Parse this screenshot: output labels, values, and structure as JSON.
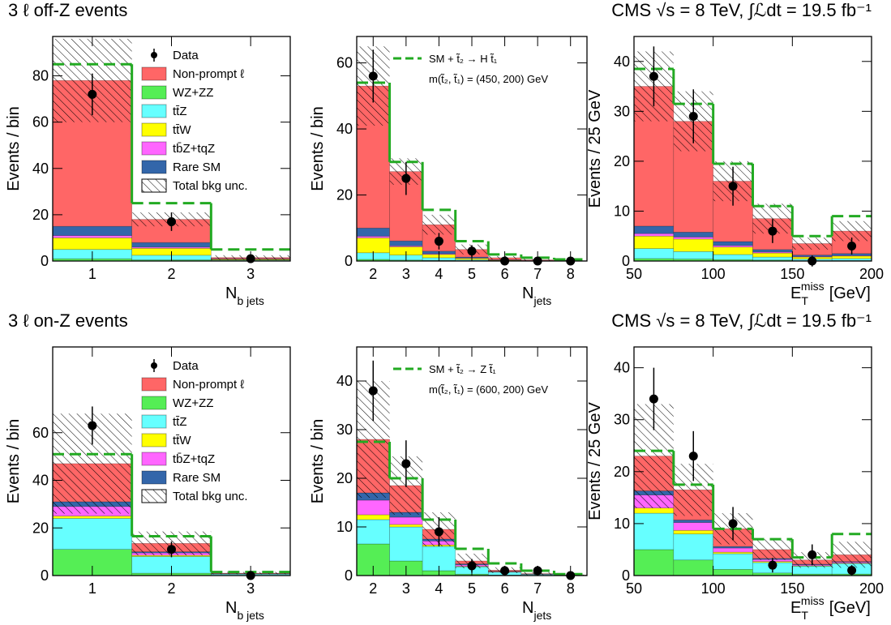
{
  "chart_data": [
    {
      "type": "stacked_histogram",
      "title": "3 ℓ off-Z events",
      "ylabel": "Events / bin",
      "xlabel": {
        "base": "N",
        "sub": "b jets"
      },
      "bins": [
        0.5,
        1.5,
        2.5,
        3.5
      ],
      "xlim": [
        0.5,
        3.5
      ],
      "xticks": [
        1,
        2,
        3
      ],
      "ylim": [
        0,
        97
      ],
      "yticks": [
        0,
        20,
        40,
        60,
        80
      ],
      "series": [
        {
          "name": "Non-prompt ℓ",
          "color": "#ff6666",
          "values": [
            63,
            10,
            0.5
          ]
        },
        {
          "name": "WZ+ZZ",
          "color": "#55ee55",
          "values": [
            1,
            0.5,
            0.1
          ]
        },
        {
          "name": "tt̄Z",
          "color": "#66ffff",
          "values": [
            4,
            2,
            0.3
          ]
        },
        {
          "name": "tt̄W",
          "color": "#ffff00",
          "values": [
            5,
            3,
            0.3
          ]
        },
        {
          "name": "tb̄Z+tqZ",
          "color": "#ff66ff",
          "values": [
            1,
            0.5,
            0.1
          ]
        },
        {
          "name": "Rare SM",
          "color": "#3366aa",
          "values": [
            4,
            2,
            0.2
          ]
        }
      ],
      "uncertainty": {
        "name": "Total bkg unc.",
        "values": [
          18,
          3,
          1
        ]
      },
      "data": {
        "name": "Data",
        "values": [
          72,
          17,
          1
        ],
        "errors": [
          9,
          4,
          1
        ]
      },
      "signal": {
        "color": "#22aa22",
        "values": [
          85,
          25,
          5
        ]
      }
    },
    {
      "type": "stacked_histogram",
      "ylabel": "Events / bin",
      "xlabel": {
        "base": "N",
        "sub": "jets"
      },
      "bins": [
        1.5,
        2.5,
        3.5,
        4.5,
        5.5,
        6.5,
        7.5,
        8.5
      ],
      "xlim": [
        1.5,
        8.5
      ],
      "xticks": [
        2,
        3,
        4,
        5,
        6,
        7,
        8
      ],
      "ylim": [
        0,
        68
      ],
      "yticks": [
        0,
        20,
        40,
        60
      ],
      "series": [
        {
          "color": "#ff6666",
          "values": [
            43,
            21,
            8,
            2.3,
            0.6,
            0.2,
            0.08
          ]
        },
        {
          "color": "#55ee55",
          "values": [
            0.5,
            0.3,
            0.2,
            0.1,
            0.05,
            0,
            0
          ]
        },
        {
          "color": "#66ffff",
          "values": [
            2,
            1.5,
            0.8,
            0.3,
            0.1,
            0.05,
            0
          ]
        },
        {
          "color": "#ffff00",
          "values": [
            4.5,
            2.5,
            1,
            0.4,
            0.1,
            0.05,
            0
          ]
        },
        {
          "color": "#ff66ff",
          "values": [
            0.5,
            0.3,
            0.2,
            0.1,
            0.05,
            0,
            0
          ]
        },
        {
          "color": "#3366aa",
          "values": [
            2.5,
            1.5,
            0.8,
            0.3,
            0.1,
            0.05,
            0.02
          ]
        }
      ],
      "uncertainty": {
        "values": [
          12,
          4,
          3,
          1.5,
          0.5,
          0.3,
          0.2
        ]
      },
      "data": {
        "values": [
          56,
          25,
          6,
          3,
          0,
          0,
          0
        ],
        "errors": [
          8,
          5,
          2.5,
          1.8,
          0,
          0,
          0
        ]
      },
      "signal": {
        "name": "SM + t̃₂ → H t̃₁",
        "color": "#22aa22",
        "values": [
          54,
          30,
          15.5,
          6,
          2,
          1,
          0.5
        ]
      },
      "annotation": "m(t̃₂, t̃₁) = (450, 200) GeV"
    },
    {
      "type": "stacked_histogram",
      "title": "CMS  √s = 8 TeV,  ∫ℒdt = 19.5 fb⁻¹",
      "ylabel": "Events / 25 GeV",
      "xlabel": {
        "base": "E",
        "sub": "T",
        "sup": "miss",
        "rest": "[GeV]"
      },
      "bins": [
        50,
        75,
        100,
        125,
        150,
        175,
        200
      ],
      "xlim": [
        50,
        200
      ],
      "xticks": [
        50,
        100,
        150,
        200
      ],
      "ylim": [
        0,
        45
      ],
      "yticks": [
        0,
        10,
        20,
        30,
        40
      ],
      "series": [
        {
          "color": "#ff6666",
          "values": [
            28,
            22.2,
            12.1,
            6.2,
            2.3,
            4.5
          ]
        },
        {
          "color": "#55ee55",
          "values": [
            0.5,
            0.4,
            0.3,
            0.2,
            0.1,
            0.1
          ]
        },
        {
          "color": "#66ffff",
          "values": [
            2,
            1.5,
            1,
            0.6,
            0.3,
            0.4
          ]
        },
        {
          "color": "#ffff00",
          "values": [
            2.5,
            2.5,
            1.5,
            0.8,
            0.4,
            0.5
          ]
        },
        {
          "color": "#ff66ff",
          "values": [
            0.5,
            0.4,
            0.3,
            0.2,
            0.1,
            0.1
          ]
        },
        {
          "color": "#3366aa",
          "values": [
            1.5,
            1,
            0.8,
            0.5,
            0.3,
            0.4
          ]
        }
      ],
      "uncertainty": {
        "values": [
          7,
          6,
          4,
          3,
          1.2,
          2
        ]
      },
      "data": {
        "values": [
          37,
          29,
          15,
          6,
          0,
          3
        ],
        "errors": [
          6,
          5.4,
          3.9,
          2.4,
          1.1,
          1.7
        ]
      },
      "signal": {
        "color": "#22aa22",
        "values": [
          38.5,
          31.5,
          19.5,
          11,
          5,
          9
        ]
      }
    },
    {
      "type": "stacked_histogram",
      "title": "3 ℓ on-Z events",
      "ylabel": "Events / bin",
      "xlabel": {
        "base": "N",
        "sub": "b jets"
      },
      "bins": [
        0.5,
        1.5,
        2.5,
        3.5
      ],
      "xlim": [
        0.5,
        3.5
      ],
      "xticks": [
        1,
        2,
        3
      ],
      "ylim": [
        0,
        96
      ],
      "yticks": [
        0,
        20,
        40,
        60
      ],
      "series": [
        {
          "name": "Non-prompt ℓ",
          "color": "#ff6666",
          "values": [
            16,
            3.5,
            0.2
          ]
        },
        {
          "name": "WZ+ZZ",
          "color": "#55ee55",
          "values": [
            11,
            1,
            0.1
          ]
        },
        {
          "name": "tt̄Z",
          "color": "#66ffff",
          "values": [
            13,
            7,
            0.5
          ]
        },
        {
          "name": "tt̄W",
          "color": "#ffff00",
          "values": [
            1,
            0.5,
            0.05
          ]
        },
        {
          "name": "tb̄Z+tqZ",
          "color": "#ff66ff",
          "values": [
            4,
            1,
            0.1
          ]
        },
        {
          "name": "Rare SM",
          "color": "#3366aa",
          "values": [
            2,
            0.5,
            0.05
          ]
        }
      ],
      "uncertainty": {
        "name": "Total bkg unc.",
        "values": [
          21,
          5,
          0.5
        ]
      },
      "data": {
        "name": "Data",
        "values": [
          63,
          11,
          0
        ],
        "errors": [
          8,
          3.3,
          0
        ]
      },
      "signal": {
        "color": "#22aa22",
        "values": [
          51,
          16.5,
          1.5
        ]
      }
    },
    {
      "type": "stacked_histogram",
      "ylabel": "Events / bin",
      "xlabel": {
        "base": "N",
        "sub": "jets"
      },
      "bins": [
        1.5,
        2.5,
        3.5,
        4.5,
        5.5,
        6.5,
        7.5,
        8.5
      ],
      "xlim": [
        1.5,
        8.5
      ],
      "xticks": [
        2,
        3,
        4,
        5,
        6,
        7,
        8
      ],
      "ylim": [
        0,
        47
      ],
      "yticks": [
        0,
        10,
        20,
        30,
        40
      ],
      "series": [
        {
          "color": "#ff6666",
          "values": [
            11,
            5.5,
            2,
            0.6,
            0.2,
            0.1,
            0.05
          ]
        },
        {
          "color": "#55ee55",
          "values": [
            6.5,
            3,
            1,
            0.3,
            0.1,
            0.05,
            0
          ]
        },
        {
          "color": "#66ffff",
          "values": [
            5,
            7,
            5,
            1.5,
            0.6,
            0.2,
            0.05
          ]
        },
        {
          "color": "#ffff00",
          "values": [
            1,
            0.5,
            0.3,
            0.1,
            0.05,
            0,
            0
          ]
        },
        {
          "color": "#ff66ff",
          "values": [
            3,
            1.5,
            0.8,
            0.3,
            0.1,
            0.05,
            0
          ]
        },
        {
          "color": "#3366aa",
          "values": [
            1.5,
            1,
            0.4,
            0.2,
            0.05,
            0,
            0
          ]
        }
      ],
      "uncertainty": {
        "values": [
          12,
          6,
          3.5,
          1.5,
          0.6,
          0.3,
          0.1
        ]
      },
      "data": {
        "values": [
          38,
          23,
          9,
          2,
          1,
          1,
          0
        ],
        "errors": [
          6.2,
          4.8,
          3,
          1.4,
          1,
          1,
          0
        ]
      },
      "signal": {
        "name": "SM + t̃₂ → Z t̃₁",
        "color": "#22aa22",
        "values": [
          27.5,
          20,
          11.5,
          5.5,
          2.5,
          1,
          0.3
        ]
      },
      "annotation": "m(t̃₂, t̃₁) = (600, 200) GeV"
    },
    {
      "type": "stacked_histogram",
      "title": "CMS  √s = 8 TeV,  ∫ℒdt = 19.5 fb⁻¹",
      "ylabel": "Events / 25 GeV",
      "xlabel": {
        "base": "E",
        "sub": "T",
        "sup": "miss",
        "rest": "[GeV]"
      },
      "bins": [
        50,
        75,
        100,
        125,
        150,
        175,
        200
      ],
      "xlim": [
        50,
        200
      ],
      "xticks": [
        50,
        100,
        150,
        200
      ],
      "ylim": [
        0,
        44
      ],
      "yticks": [
        0,
        10,
        20,
        30,
        40
      ],
      "series": [
        {
          "color": "#ff6666",
          "values": [
            6.7,
            5.8,
            3.4,
            1.7,
            0.8,
            1.3
          ]
        },
        {
          "color": "#55ee55",
          "values": [
            5,
            3,
            1.2,
            0.5,
            0.3,
            0.3
          ]
        },
        {
          "color": "#66ffff",
          "values": [
            7,
            5,
            3,
            2,
            1.5,
            2
          ]
        },
        {
          "color": "#ffff00",
          "values": [
            1,
            0.7,
            0.3,
            0.2,
            0.1,
            0.1
          ]
        },
        {
          "color": "#ff66ff",
          "values": [
            2.5,
            1.5,
            0.8,
            0.4,
            0.2,
            0.2
          ]
        },
        {
          "color": "#3366aa",
          "values": [
            0.8,
            0.5,
            0.3,
            0.2,
            0.1,
            0.1
          ]
        }
      ],
      "uncertainty": {
        "values": [
          10,
          5,
          3,
          2,
          1.5,
          2.5
        ]
      },
      "data": {
        "values": [
          34,
          23,
          10,
          2,
          4,
          1
        ],
        "errors": [
          6,
          4.8,
          3.2,
          1.4,
          2,
          1
        ]
      },
      "signal": {
        "color": "#22aa22",
        "values": [
          24,
          17.5,
          9,
          7,
          3.5,
          8
        ]
      }
    }
  ]
}
